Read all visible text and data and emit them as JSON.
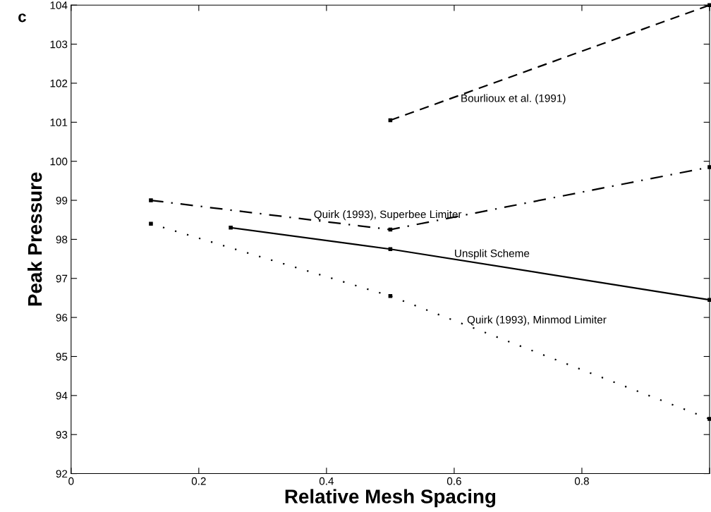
{
  "chart_data": {
    "type": "line",
    "xlabel": "Relative Mesh Spacing",
    "ylabel": "Peak Pressure",
    "xlim": [
      0,
      1
    ],
    "ylim": [
      92,
      104
    ],
    "xticks": [
      0,
      0.2,
      0.4,
      0.6,
      0.8,
      {
        "value": 1,
        "label": null
      }
    ],
    "yticks": [
      92,
      93,
      94,
      95,
      96,
      97,
      98,
      99,
      100,
      101,
      102,
      103,
      104
    ],
    "grid": false,
    "legend": false,
    "marker": "square",
    "series": [
      {
        "color": "#000000",
        "line_style": "dashed",
        "x": [
          0.5,
          1
        ],
        "values": [
          101.05,
          104.0
        ]
      },
      {
        "color": "#000000",
        "line_style": "dashdot",
        "x": [
          0.125,
          0.5,
          1
        ],
        "values": [
          99.0,
          98.25,
          99.85
        ]
      },
      {
        "color": "#000000",
        "line_style": "solid",
        "x": [
          0.25,
          0.5,
          1
        ],
        "values": [
          98.3,
          97.75,
          96.45
        ]
      },
      {
        "color": "#000000",
        "line_style": "dotted",
        "x": [
          0.125,
          0.5,
          1
        ],
        "values": [
          98.4,
          96.55,
          93.4
        ]
      }
    ],
    "annotations": [
      "c",
      {
        "text": "Bourlioux et al. (1991)",
        "x": 0.61,
        "y": 101.72
      },
      {
        "text": "Quirk (1993), Superbee Limiter",
        "x": 0.38,
        "y": 98.49
      },
      {
        "text": "Unsplit Scheme",
        "x": 0.6,
        "y": 97.49
      },
      {
        "text": "Quirk (1993), Minmod Limiter",
        "x": 0.62,
        "y": 95.79
      }
    ]
  }
}
